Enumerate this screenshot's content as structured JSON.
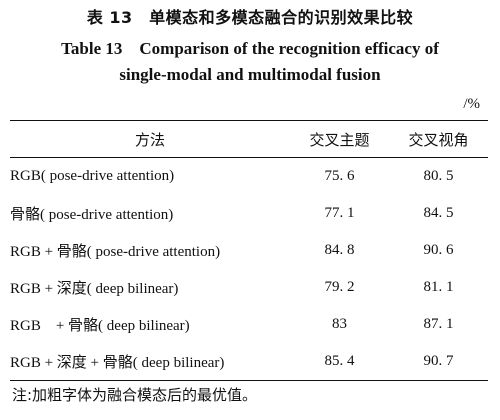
{
  "caption": {
    "title_cn": "表 13　单模态和多模态融合的识别效果比较",
    "title_en_line1": "Table 13　Comparison of the recognition efficacy of",
    "title_en_line2": "single-modal and multimodal fusion"
  },
  "unit": "/%",
  "table": {
    "headers": [
      "方法",
      "交叉主题",
      "交叉视角"
    ],
    "rows": [
      {
        "method": "RGB( pose-drive attention)",
        "cross_subject": "75. 6",
        "cross_view": "80. 5",
        "bold": false
      },
      {
        "method": "骨骼( pose-drive attention)",
        "cross_subject": "77. 1",
        "cross_view": "84. 5",
        "bold": false
      },
      {
        "method": "RGB + 骨骼( pose-drive attention)",
        "cross_subject": "84. 8",
        "cross_view": "90. 6",
        "bold": true
      },
      {
        "method": "RGB + 深度( deep bilinear)",
        "cross_subject": "79. 2",
        "cross_view": "81. 1",
        "bold": false
      },
      {
        "method": "RGB　+ 骨骼( deep bilinear)",
        "cross_subject": "83",
        "cross_view": "87. 1",
        "bold": false
      },
      {
        "method": "RGB + 深度 + 骨骼( deep bilinear)",
        "cross_subject": "85. 4",
        "cross_view": "90. 7",
        "bold": true
      }
    ]
  },
  "note": "注:加粗字体为融合模态后的最优值。"
}
